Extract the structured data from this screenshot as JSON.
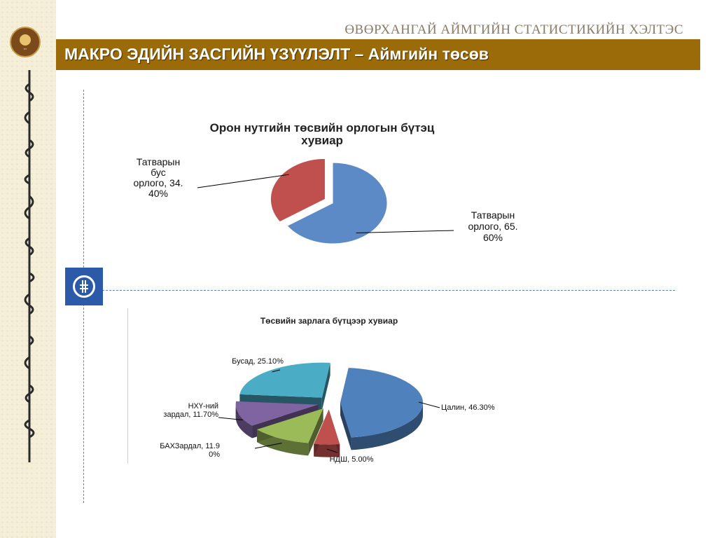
{
  "header": {
    "organization": "ӨВӨРХАНГАЙ АЙМГИЙН СТАТИСТИКИЙН ХЭЛТЭС",
    "title": "МАКРО ЭДИЙН ЗАСГИЙН ҮЗҮҮЛЭЛТ – Аймгийн төсөв",
    "banner_color": "#9a6b08"
  },
  "sidebar": {
    "logo_icon": "statistics-emblem-icon",
    "script_icon": "mongolian-script-decoration"
  },
  "divider_icon": "budget-coin-icon",
  "chart_data": [
    {
      "type": "pie",
      "title_lines": [
        "Орон нутгийн төсвийн орлогын бүтэц",
        "хувиар"
      ],
      "slices": [
        {
          "label_lines": [
            "Татварын",
            "орлого, 65.",
            "60%"
          ],
          "value": 65.6,
          "color": "#5b8ac6"
        },
        {
          "label_lines": [
            "Татварын",
            "бус",
            "орлого, 34.",
            "40%"
          ],
          "value": 34.4,
          "color": "#c0504d"
        }
      ]
    },
    {
      "type": "pie",
      "title": "Төсвийн зарлага бүтцээр хувиар",
      "slices": [
        {
          "label_lines": [
            "Цалин, 46.30%"
          ],
          "value": 46.3,
          "color": "#4f81bd"
        },
        {
          "label_lines": [
            "НДШ, 5.00%"
          ],
          "value": 5.0,
          "color": "#c0504d"
        },
        {
          "label_lines": [
            "БАХЗардал, 11.9",
            "0%"
          ],
          "value": 11.9,
          "color": "#9bbb59"
        },
        {
          "label_lines": [
            "НХҮ-ний",
            "зардал, 11.70%"
          ],
          "value": 11.7,
          "color": "#8064a2"
        },
        {
          "label_lines": [
            "Бусад, 25.10%"
          ],
          "value": 25.1,
          "color": "#4bacc6"
        }
      ]
    }
  ]
}
